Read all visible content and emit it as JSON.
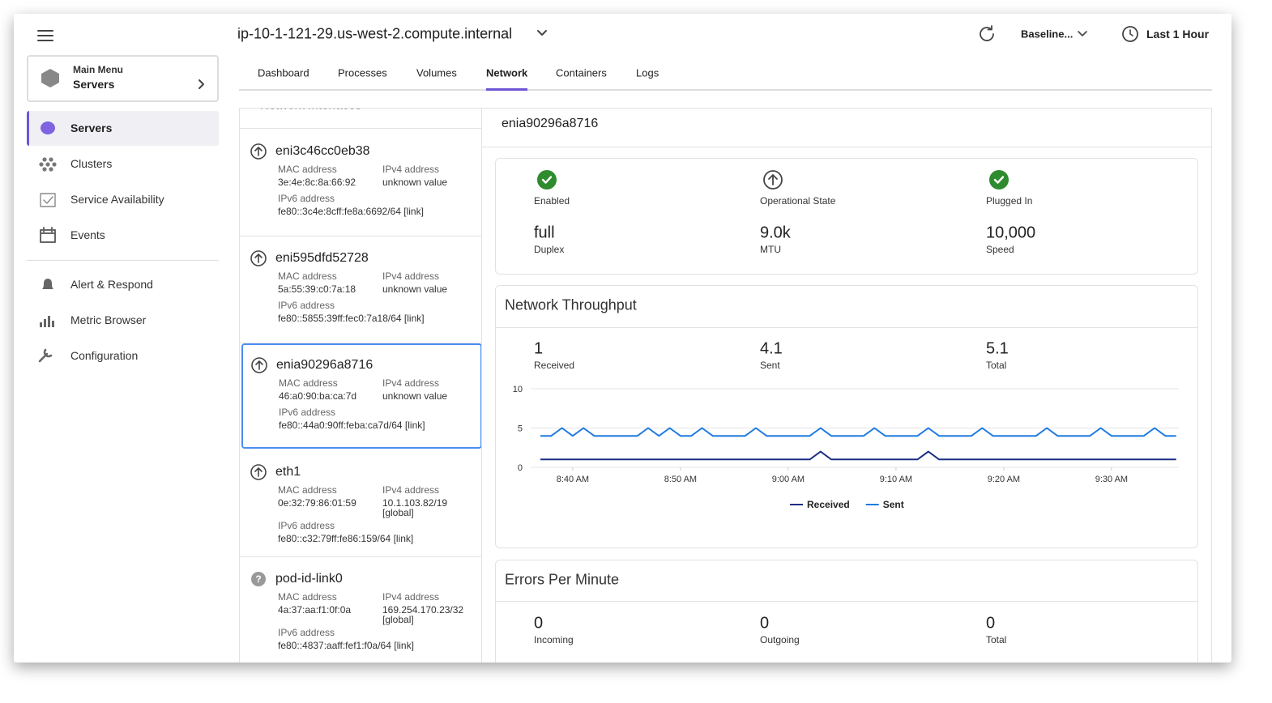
{
  "header": {
    "host": "ip-10-1-121-29.us-west-2.compute.internal",
    "baseline": "Baseline...",
    "time_range": "Last 1 Hour"
  },
  "sidebar": {
    "menu_label": "Main Menu",
    "menu_title": "Servers",
    "items": [
      "Servers",
      "Clusters",
      "Service Availability",
      "Events",
      "Alert & Respond",
      "Metric Browser",
      "Configuration"
    ]
  },
  "tabs": [
    "Dashboard",
    "Processes",
    "Volumes",
    "Network",
    "Containers",
    "Logs"
  ],
  "interfaces": {
    "title": "Network Interfaces",
    "labels": {
      "mac": "MAC address",
      "ipv4": "IPv4 address",
      "ipv6": "IPv6 address"
    },
    "items": [
      {
        "name": "eni3c46cc0eb38",
        "status": "up",
        "mac": "3e:4e:8c:8a:66:92",
        "ipv4": "unknown value",
        "ipv6": "fe80::3c4e:8cff:fe8a:6692/64 [link]"
      },
      {
        "name": "eni595dfd52728",
        "status": "up",
        "mac": "5a:55:39:c0:7a:18",
        "ipv4": "unknown value",
        "ipv6": "fe80::5855:39ff:fec0:7a18/64 [link]"
      },
      {
        "name": "enia90296a8716",
        "status": "up",
        "mac": "46:a0:90:ba:ca:7d",
        "ipv4": "unknown value",
        "ipv6": "fe80::44a0:90ff:feba:ca7d/64 [link]"
      },
      {
        "name": "eth1",
        "status": "up",
        "mac": "0e:32:79:86:01:59",
        "ipv4": "10.1.103.82/19 [global]",
        "ipv6": "fe80::c32:79ff:fe86:159/64 [link]"
      },
      {
        "name": "pod-id-link0",
        "status": "unknown",
        "mac": "4a:37:aa:f1:0f:0a",
        "ipv4": "169.254.170.23/32 [global]",
        "ipv6": "fe80::4837:aaff:fef1:f0a/64 [link]"
      }
    ]
  },
  "detail": {
    "name": "enia90296a8716",
    "states": [
      "Enabled",
      "Operational State",
      "Plugged In"
    ],
    "stats": [
      {
        "value": "full",
        "label": "Duplex"
      },
      {
        "value": "9.0k",
        "label": "MTU"
      },
      {
        "value": "10,000",
        "label": "Speed"
      }
    ],
    "throughput": {
      "title": "Network Throughput",
      "stats": [
        {
          "value": 1,
          "label": "Received"
        },
        {
          "value": 4.1,
          "label": "Sent"
        },
        {
          "value": 5.1,
          "label": "Total"
        }
      ],
      "chart": {
        "type": "line",
        "x": [
          "8:37 AM",
          "8:38 AM",
          "8:39 AM",
          "8:40 AM",
          "8:41 AM",
          "8:42 AM",
          "8:43 AM",
          "8:44 AM",
          "8:45 AM",
          "8:46 AM",
          "8:47 AM",
          "8:48 AM",
          "8:49 AM",
          "8:50 AM",
          "8:51 AM",
          "8:52 AM",
          "8:53 AM",
          "8:54 AM",
          "8:55 AM",
          "8:56 AM",
          "8:57 AM",
          "8:58 AM",
          "8:59 AM",
          "9:00 AM",
          "9:01 AM",
          "9:02 AM",
          "9:03 AM",
          "9:04 AM",
          "9:05 AM",
          "9:06 AM",
          "9:07 AM",
          "9:08 AM",
          "9:09 AM",
          "9:10 AM",
          "9:11 AM",
          "9:12 AM",
          "9:13 AM",
          "9:14 AM",
          "9:15 AM",
          "9:16 AM",
          "9:17 AM",
          "9:18 AM",
          "9:19 AM",
          "9:20 AM",
          "9:21 AM",
          "9:22 AM",
          "9:23 AM",
          "9:24 AM",
          "9:25 AM",
          "9:26 AM",
          "9:27 AM",
          "9:28 AM",
          "9:29 AM",
          "9:30 AM",
          "9:31 AM",
          "9:32 AM",
          "9:33 AM",
          "9:34 AM",
          "9:35 AM",
          "9:36 AM"
        ],
        "xticks": [
          "8:40 AM",
          "8:50 AM",
          "9:00 AM",
          "9:10 AM",
          "9:20 AM",
          "9:30 AM"
        ],
        "ylim": [
          0,
          10
        ],
        "yticks": [
          0,
          5,
          10
        ],
        "grid": true,
        "series": [
          {
            "name": "Received",
            "color": "#1c2f86",
            "values": [
              1,
              1,
              1,
              1,
              1,
              1,
              1,
              1,
              1,
              1,
              1,
              1,
              1,
              1,
              1,
              1,
              1,
              1,
              1,
              1,
              1,
              1,
              1,
              1,
              1,
              1,
              2,
              1,
              1,
              1,
              1,
              1,
              1,
              1,
              1,
              1,
              2,
              1,
              1,
              1,
              1,
              1,
              1,
              1,
              1,
              1,
              1,
              1,
              1,
              1,
              1,
              1,
              1,
              1,
              1,
              1,
              1,
              1,
              1,
              1
            ]
          },
          {
            "name": "Sent",
            "color": "#1f7be0",
            "values": [
              4,
              4,
              5,
              4,
              5,
              4,
              4,
              4,
              4,
              4,
              5,
              4,
              5,
              4,
              4,
              5,
              4,
              4,
              4,
              4,
              5,
              4,
              4,
              4,
              4,
              4,
              5,
              4,
              4,
              4,
              4,
              5,
              4,
              4,
              4,
              4,
              5,
              4,
              4,
              4,
              4,
              5,
              4,
              4,
              4,
              4,
              4,
              5,
              4,
              4,
              4,
              4,
              5,
              4,
              4,
              4,
              4,
              5,
              4,
              4
            ]
          }
        ]
      }
    },
    "errors": {
      "title": "Errors Per Minute",
      "stats": [
        {
          "value": 0,
          "label": "Incoming"
        },
        {
          "value": 0,
          "label": "Outgoing"
        },
        {
          "value": 0,
          "label": "Total"
        }
      ]
    }
  }
}
